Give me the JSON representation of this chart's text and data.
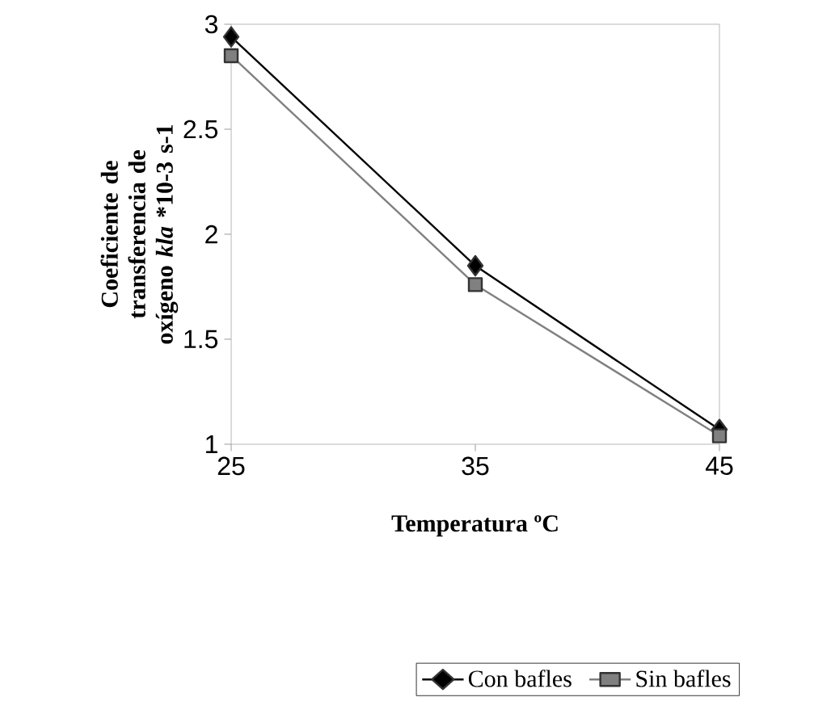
{
  "chart_data": {
    "type": "line",
    "xlabel": "Temperatura ºC",
    "ylabel": "Coeficiente de transferencia de oxígeno *kla* *10-3 s-1",
    "x": [
      25,
      35,
      45
    ],
    "xlim": [
      25,
      45
    ],
    "xticks": [
      25,
      35,
      45
    ],
    "ylim": [
      1,
      3
    ],
    "yticks": [
      1,
      1.5,
      2,
      2.5,
      3
    ],
    "series": [
      {
        "name": "Con bafles",
        "color": "#000000",
        "marker": "diamond",
        "values": [
          2.94,
          1.85,
          1.07
        ]
      },
      {
        "name": "Sin bafles",
        "color": "#808080",
        "marker": "square",
        "values": [
          2.85,
          1.76,
          1.04
        ]
      }
    ],
    "grid": false,
    "legend": "bottom",
    "line_style": "solid"
  }
}
